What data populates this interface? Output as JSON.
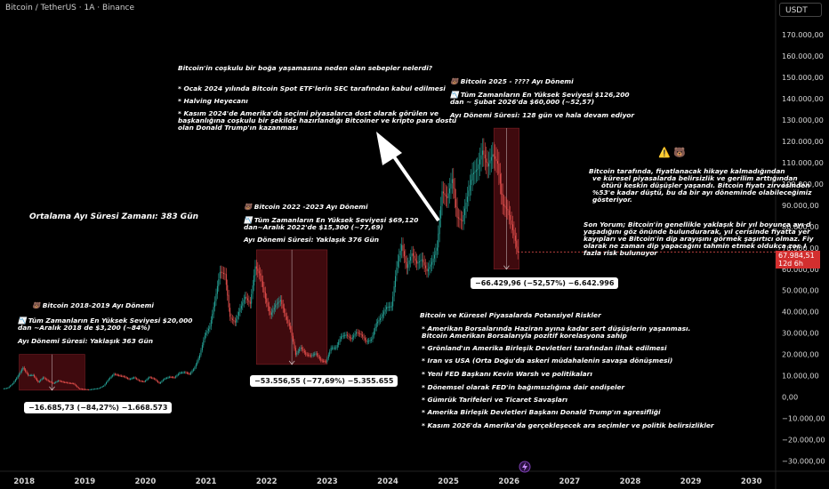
{
  "header": {
    "title": "Bitcoin / TetherUS · 1A · Binance",
    "currency": "USDT"
  },
  "last_price": {
    "value": "67.984,51",
    "countdown": "12d 6h",
    "y": 67984.51
  },
  "annotations": {
    "causes": [
      "Bitcoin'in coşkulu bir boğa yaşamasına neden olan sebepler nelerdi?",
      "* Ocak 2024 yılında Bitcoin Spot ETF'lerin SEC tarafından kabul edilmesi",
      "* Halving Heyecanı",
      "* Kasım 2024'de Amerika'da seçimi piyasalarca dost olarak görülen ve",
      "başkanlığına coşkulu bir şekilde hazırlandığı Bitcoiner ve kripto para dostu",
      " olan Donald Trump'ın kazanması"
    ],
    "bear2025": [
      "🐻 Bitcoin 2025 -  ???? Ayı Dönemi",
      "📉 Tüm Zamanların En Yüksek Seviyesi $126,200",
      "dan ~ Şubat 2026'da $60,000 (~52,57)",
      "Ayı Dönemi Süresi: 128 gün ve hala devam ediyor"
    ],
    "bear2022": [
      "🐻 Bitcoin 2022 -2023 Ayı Dönemi",
      "📉 Tüm Zamanların En Yüksek Seviyesi $69,120",
      "dan~Aralık 2022'de $15,300 (~77,69)",
      "Ayı Dönemi Süresi: Yaklaşık 376 Gün"
    ],
    "bear2018": [
      "🐻 Bitcoin 2018-2019 Ayı Dönemi",
      "📉 Tüm Zamanların En Yüksek Seviyesi $20,000",
      "dan ~Aralık 2018 de $3,200 (~84%)",
      "Ayı Dönemi Süresi: Yaklaşık 363 Gün"
    ],
    "average": "Ortalama Ayı Süresi Zamanı: 383 Gün",
    "warning_icons": "⚠️ 🐻",
    "story": [
      "Bitcoin tarafında, fiyatlanacak hikaye kalmadığından",
      "ve küresel piyasalarda belirsizlik ve gerilim arttığından",
      "ötürü keskin düşüşler yaşandı. Bitcoin fiyatı zirvesinden",
      "%53'e kadar düştü, bu da bir ayı döneminde olabileceğimiz",
      "gösteriyor."
    ],
    "conclusion": [
      "Son Yorum; Bitcoin'in genellikle yaklaşık  bir yıl boyunca ayı d",
      "yaşadığını göz önünde bulundurarak, yıl çerisinde fiyatta yer",
      "kayıpları ve Bitcoin'in dip arayışını görmek şaşırtıcı olmaz. Fiy",
      "olarak ne zaman dip yapacağını tahmin etmek oldukça zor. I",
      "fazla risk bulunuyor"
    ],
    "risks": [
      "Bitcoin ve Küresel Piyasalarda Potansiyel Riskler",
      "* Amerikan Borsalarında Haziran ayına kadar sert düşüşlerin yaşanması.",
      "Bitcoin Amerikan Borsalarıyla pozitif korelasyona  sahip",
      "*  Grönland'ın Amerika Birleşik Devletleri tarafından ilhak edilmesi",
      "*  Iran vs USA (Orta Doğu'da askeri müdahalenin savaşa dönüşmesi)",
      "*  Yeni FED Başkanı Kevin Warsh ve politikaları",
      "*  Dönemsel olarak FED'in bağımsızlığına dair endişeler",
      "*  Gümrük Tarifeleri ve Ticaret Savaşları",
      "*  Amerika Birleşik Devletleri Başkanı Donald Trump'ın agresifliği",
      "*  Kasım 2026'da Amerika'da gerçekleşecek ara seçimler ve politik belirsizlikler"
    ],
    "measure2018": "−16.685,73 (−84,27%) −1.668.573",
    "measure2022": "−53.556,55 (−77,69%) −5.355.655",
    "measure2025": "−66.429,96 (−52,57%) −6.642.996"
  },
  "chart_data": {
    "type": "candlestick",
    "title": "Bitcoin / TetherUS · 1A · Binance",
    "x_tick_labels": [
      "2018",
      "2019",
      "2020",
      "2021",
      "2022",
      "2023",
      "2024",
      "2025",
      "2026",
      "2027",
      "2028",
      "2029",
      "2030"
    ],
    "y_tick_labels": [
      "170.000,00",
      "160.000,00",
      "150.000,00",
      "140.000,00",
      "130.000,00",
      "120.000,00",
      "110.000,00",
      "100.000,00",
      "90.000,00",
      "80.000,00",
      "70.000,00",
      "60.000,00",
      "50.000,00",
      "40.000,00",
      "30.000,00",
      "20.000,00",
      "10.000,00",
      "0,00",
      "−10.000,00",
      "−20.000,00",
      "−30.000,00"
    ],
    "y_ticks": [
      170000,
      160000,
      150000,
      140000,
      130000,
      120000,
      110000,
      100000,
      90000,
      80000,
      70000,
      60000,
      50000,
      40000,
      30000,
      20000,
      10000,
      0,
      -10000,
      -20000,
      -30000
    ],
    "x_range": [
      2017.6,
      2030.4
    ],
    "ylim": [
      -34000,
      178000
    ],
    "up_color": "#26a69a",
    "down_color": "#ef5350",
    "monthly_close": [
      [
        "2017-09",
        4300
      ],
      [
        "2017-10",
        6400
      ],
      [
        "2017-11",
        9900
      ],
      [
        "2017-12",
        13800
      ],
      [
        "2018-01",
        10200
      ],
      [
        "2018-02",
        10300
      ],
      [
        "2018-03",
        6900
      ],
      [
        "2018-04",
        9200
      ],
      [
        "2018-05",
        7500
      ],
      [
        "2018-06",
        6400
      ],
      [
        "2018-07",
        7700
      ],
      [
        "2018-08",
        7000
      ],
      [
        "2018-09",
        6600
      ],
      [
        "2018-10",
        6300
      ],
      [
        "2018-11",
        4000
      ],
      [
        "2018-12",
        3700
      ],
      [
        "2019-01",
        3450
      ],
      [
        "2019-02",
        3800
      ],
      [
        "2019-03",
        4100
      ],
      [
        "2019-04",
        5300
      ],
      [
        "2019-05",
        8500
      ],
      [
        "2019-06",
        10800
      ],
      [
        "2019-07",
        10100
      ],
      [
        "2019-08",
        9600
      ],
      [
        "2019-09",
        8300
      ],
      [
        "2019-10",
        9200
      ],
      [
        "2019-11",
        7600
      ],
      [
        "2019-12",
        7200
      ],
      [
        "2020-01",
        9350
      ],
      [
        "2020-02",
        8500
      ],
      [
        "2020-03",
        6400
      ],
      [
        "2020-04",
        8600
      ],
      [
        "2020-05",
        9450
      ],
      [
        "2020-06",
        9140
      ],
      [
        "2020-07",
        11350
      ],
      [
        "2020-08",
        11650
      ],
      [
        "2020-09",
        10780
      ],
      [
        "2020-10",
        13800
      ],
      [
        "2020-11",
        19700
      ],
      [
        "2020-12",
        29000
      ],
      [
        "2021-01",
        33100
      ],
      [
        "2021-02",
        45100
      ],
      [
        "2021-03",
        58800
      ],
      [
        "2021-04",
        57700
      ],
      [
        "2021-05",
        37300
      ],
      [
        "2021-06",
        35000
      ],
      [
        "2021-07",
        41500
      ],
      [
        "2021-08",
        47100
      ],
      [
        "2021-09",
        43800
      ],
      [
        "2021-10",
        61300
      ],
      [
        "2021-11",
        57000
      ],
      [
        "2021-12",
        46300
      ],
      [
        "2022-01",
        38500
      ],
      [
        "2022-02",
        43200
      ],
      [
        "2022-03",
        45500
      ],
      [
        "2022-04",
        37700
      ],
      [
        "2022-05",
        31800
      ],
      [
        "2022-06",
        19900
      ],
      [
        "2022-07",
        23300
      ],
      [
        "2022-08",
        20050
      ],
      [
        "2022-09",
        19400
      ],
      [
        "2022-10",
        20500
      ],
      [
        "2022-11",
        17150
      ],
      [
        "2022-12",
        16550
      ],
      [
        "2023-01",
        23100
      ],
      [
        "2023-02",
        23150
      ],
      [
        "2023-03",
        28500
      ],
      [
        "2023-04",
        29250
      ],
      [
        "2023-05",
        27200
      ],
      [
        "2023-06",
        30450
      ],
      [
        "2023-07",
        29250
      ],
      [
        "2023-08",
        25950
      ],
      [
        "2023-09",
        26950
      ],
      [
        "2023-10",
        34650
      ],
      [
        "2023-11",
        37700
      ],
      [
        "2023-12",
        42300
      ],
      [
        "2024-01",
        42600
      ],
      [
        "2024-02",
        61200
      ],
      [
        "2024-03",
        71300
      ],
      [
        "2024-04",
        60600
      ],
      [
        "2024-05",
        67500
      ],
      [
        "2024-06",
        62700
      ],
      [
        "2024-07",
        64600
      ],
      [
        "2024-08",
        58970
      ],
      [
        "2024-09",
        63300
      ],
      [
        "2024-10",
        70200
      ],
      [
        "2024-11",
        96400
      ],
      [
        "2024-12",
        93400
      ],
      [
        "2025-01",
        102400
      ],
      [
        "2025-02",
        84300
      ],
      [
        "2025-03",
        82500
      ],
      [
        "2025-04",
        94200
      ],
      [
        "2025-05",
        104600
      ],
      [
        "2025-06",
        107100
      ],
      [
        "2025-07",
        115700
      ],
      [
        "2025-08",
        108200
      ],
      [
        "2025-09",
        114000
      ],
      [
        "2025-10",
        109600
      ],
      [
        "2025-11",
        90400
      ],
      [
        "2025-12",
        87600
      ],
      [
        "2026-01",
        78500
      ],
      [
        "2026-02",
        67984
      ]
    ],
    "bear_periods": [
      {
        "label": "2018-2019",
        "from": "2017-12",
        "to": "2018-12",
        "high": 20000,
        "low": 3200
      },
      {
        "label": "2022-2023",
        "from": "2021-11",
        "to": "2022-12",
        "high": 69120,
        "low": 15300
      },
      {
        "label": "2025-",
        "from": "2025-10",
        "to": "2026-02",
        "high": 126200,
        "low": 60000
      }
    ]
  }
}
